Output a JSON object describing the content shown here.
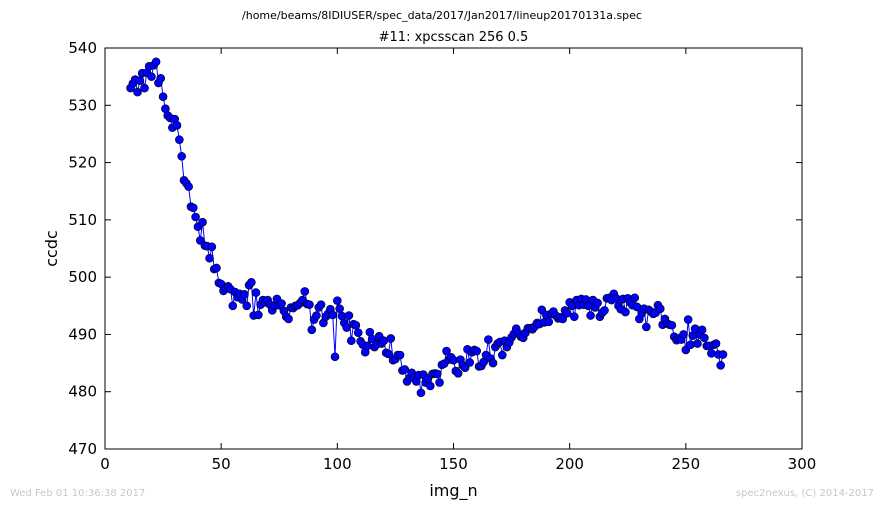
{
  "header": {
    "file_title": "/home/beams/8IDIUSER/spec_data/2017/Jan2017/lineup20170131a.spec"
  },
  "footer": {
    "timestamp": "Wed Feb 01 10:36:38 2017",
    "credit": "spec2nexus, (C) 2014-2017"
  },
  "colors": {
    "series": "#0000ff",
    "marker_edge": "#000000",
    "axes": "#000000"
  },
  "chart_data": {
    "type": "line",
    "title": "#11: xpcsscan 256 0.5",
    "xlabel": "img_n",
    "ylabel": "ccdc",
    "xlim": [
      0,
      300
    ],
    "ylim": [
      470,
      540
    ],
    "xticks": [
      "0",
      "50",
      "100",
      "150",
      "200",
      "250",
      "300"
    ],
    "yticks": [
      "470",
      "480",
      "490",
      "500",
      "510",
      "520",
      "530",
      "540"
    ],
    "markers": true,
    "series": [
      {
        "x_start": 11,
        "x_step": 1,
        "y": [
          533.0,
          533.8,
          534.5,
          532.3,
          534.3,
          535.6,
          533.0,
          535.7,
          536.8,
          535.0,
          537.0,
          537.6,
          533.9,
          534.7,
          531.5,
          529.4,
          528.2,
          527.8,
          526.1,
          527.6,
          526.5,
          524.0,
          521.1,
          516.9,
          516.4,
          515.8,
          512.3,
          512.1,
          510.5,
          508.8,
          506.4,
          509.6,
          505.5,
          505.4,
          503.3,
          505.3,
          501.4,
          501.6,
          499.0,
          498.8,
          497.6,
          498.1,
          498.4,
          497.9,
          495.0,
          497.4,
          496.5,
          497.1,
          496.1,
          497.0,
          495.0,
          498.6,
          499.1,
          493.3,
          497.3,
          493.4,
          495.2,
          496.0,
          495.6,
          496.0,
          495.2,
          494.2,
          495.0,
          496.2,
          495.1,
          495.4,
          494.1,
          493.1,
          492.7,
          494.7,
          494.6,
          495.0,
          495.1,
          495.5,
          496.0,
          497.5,
          495.3,
          495.2,
          490.8,
          492.6,
          493.3,
          494.7,
          495.2,
          492.0,
          493.1,
          493.6,
          494.4,
          493.4,
          486.1,
          495.9,
          494.5,
          493.2,
          492.0,
          491.2,
          493.3,
          488.9,
          491.8,
          491.6,
          490.3,
          488.8,
          488.2,
          486.9,
          488.0,
          490.4,
          489.2,
          487.8,
          488.3,
          489.7,
          488.4,
          488.9,
          486.8,
          486.6,
          489.3,
          485.5,
          485.7,
          486.4,
          486.4,
          483.7,
          483.9,
          481.8,
          482.4,
          483.3,
          482.4,
          481.8,
          482.9,
          479.8,
          483.0,
          481.6,
          482.3,
          481.0,
          483.1,
          483.2,
          483.1,
          481.6,
          484.7,
          484.9,
          487.1,
          485.6,
          486.0,
          485.5,
          483.6,
          483.2,
          485.6,
          484.6,
          484.2,
          487.4,
          485.1,
          486.9,
          487.3,
          487.1,
          484.4,
          484.5,
          485.2,
          486.4,
          489.1,
          485.8,
          485.0,
          487.8,
          488.4,
          488.7,
          486.4,
          488.9,
          487.8,
          488.6,
          489.5,
          490.1,
          491.0,
          490.2,
          489.6,
          489.4,
          490.3,
          491.1,
          491.1,
          490.9,
          491.4,
          492.0,
          491.8,
          494.3,
          492.1,
          493.4,
          492.2,
          493.6,
          494.0,
          493.3,
          492.8,
          493.0,
          492.7,
          494.2,
          493.7,
          495.6,
          495.0,
          493.1,
          496.0,
          495.1,
          496.2,
          495.2,
          496.1,
          495.0,
          493.3,
          496.0,
          494.7,
          495.5,
          493.1,
          493.8,
          494.2,
          496.3,
          496.4,
          496.0,
          497.1,
          496.3,
          495.0,
          494.4,
          496.2,
          493.9,
          496.3,
          495.6,
          495.1,
          496.4,
          494.8,
          492.7,
          493.7,
          494.5,
          491.3,
          494.3,
          494.0,
          493.6,
          493.8,
          495.1,
          494.5,
          491.7,
          492.7,
          491.9,
          491.7,
          491.6,
          489.6,
          489.0,
          489.3,
          489.1,
          490.0,
          487.3,
          492.6,
          488.2,
          489.8,
          491.0,
          488.4,
          490.0,
          490.8,
          489.4,
          488.0,
          488.0,
          486.7,
          488.2,
          488.4,
          486.5,
          484.6,
          486.5
        ]
      }
    ]
  }
}
